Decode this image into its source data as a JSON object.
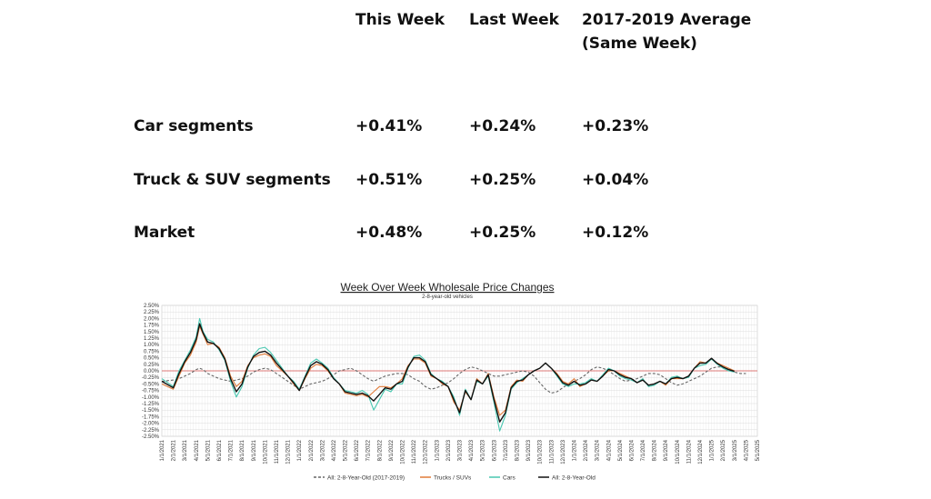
{
  "table": {
    "headers": [
      "This Week",
      "Last Week",
      "2017-2019 Average",
      "(Same Week)"
    ],
    "rows": [
      {
        "label": "Car segments",
        "this_week": "+0.41%",
        "last_week": "+0.24%",
        "avg": "+0.23%"
      },
      {
        "label": "Truck & SUV segments",
        "this_week": "+0.51%",
        "last_week": "+0.25%",
        "avg": "+0.04%"
      },
      {
        "label": "Market",
        "this_week": "+0.48%",
        "last_week": "+0.25%",
        "avg": "+0.12%"
      }
    ]
  },
  "chart_data": {
    "type": "line",
    "title": "Week Over Week Wholesale Price Changes",
    "subtitle": "2-8-year-old vehicles",
    "ylim": [
      -2.5,
      2.5
    ],
    "y_ticks": [
      "2.50%",
      "2.25%",
      "2.00%",
      "1.75%",
      "1.50%",
      "1.25%",
      "1.00%",
      "0.75%",
      "0.50%",
      "0.25%",
      "0.00%",
      "-0.25%",
      "-0.50%",
      "-0.75%",
      "-1.00%",
      "-1.25%",
      "-1.50%",
      "-1.75%",
      "-2.00%",
      "-2.25%",
      "-2.50%"
    ],
    "x_ticks": [
      "1/1/2021",
      "2/1/2021",
      "3/1/2021",
      "4/1/2021",
      "5/1/2021",
      "6/1/2021",
      "7/1/2021",
      "8/1/2021",
      "9/1/2021",
      "10/1/2021",
      "11/1/2021",
      "12/1/2021",
      "1/1/2022",
      "2/1/2022",
      "3/1/2022",
      "4/1/2022",
      "5/1/2022",
      "6/1/2022",
      "7/1/2022",
      "8/1/2022",
      "9/1/2022",
      "10/1/2022",
      "11/1/2022",
      "12/1/2022",
      "1/1/2023",
      "2/1/2023",
      "3/1/2023",
      "4/1/2023",
      "5/1/2023",
      "6/1/2023",
      "7/1/2023",
      "8/1/2023",
      "9/1/2023",
      "10/1/2023",
      "11/1/2023",
      "12/1/2023",
      "1/1/2024",
      "2/1/2024",
      "3/1/2024",
      "4/1/2024",
      "5/1/2024",
      "6/1/2024",
      "7/1/2024",
      "8/1/2024",
      "9/1/2024",
      "10/1/2024",
      "11/1/2024",
      "12/1/2024",
      "1/1/2025",
      "2/1/2025",
      "3/1/2025",
      "4/1/2025",
      "5/1/2025"
    ],
    "x_months": [
      0,
      1,
      1.5,
      2,
      2.5,
      3,
      3.3,
      3.6,
      4,
      4.5,
      5,
      5.5,
      6,
      6.5,
      7,
      7.5,
      8,
      8.5,
      9,
      9.5,
      10,
      10.5,
      11,
      11.5,
      12,
      12.5,
      13,
      13.5,
      14,
      14.5,
      15,
      15.5,
      16,
      16.5,
      17,
      17.5,
      18,
      18.5,
      19,
      19.5,
      20,
      20.5,
      21,
      21.5,
      22,
      22.5,
      23,
      23.5,
      24,
      24.5,
      25,
      25.5,
      26,
      26.5,
      27,
      27.5,
      28,
      28.5,
      29,
      29.5,
      30,
      30.5,
      31,
      31.5,
      32,
      32.5,
      33,
      33.5,
      34,
      34.5,
      35,
      35.5,
      36,
      36.5,
      37,
      37.5,
      38,
      38.5,
      39,
      39.5,
      40,
      40.5,
      41,
      41.5,
      42,
      42.5,
      43,
      43.5,
      44,
      44.5,
      45,
      45.5,
      46,
      46.5,
      47,
      47.5,
      48,
      48.5,
      49,
      49.5,
      50,
      50.5,
      51
    ],
    "series": [
      {
        "name": "All: 2-8-Year-Old (2017-2019)",
        "color": "#666666",
        "dash": true,
        "values": [
          -0.4,
          -0.35,
          -0.3,
          -0.2,
          -0.1,
          0.05,
          0.1,
          0.05,
          -0.1,
          -0.2,
          -0.3,
          -0.35,
          -0.4,
          -0.35,
          -0.3,
          -0.2,
          -0.05,
          0.05,
          0.1,
          0.05,
          -0.1,
          -0.25,
          -0.4,
          -0.55,
          -0.7,
          -0.6,
          -0.5,
          -0.45,
          -0.4,
          -0.3,
          -0.15,
          0.0,
          0.05,
          0.1,
          0.0,
          -0.15,
          -0.3,
          -0.4,
          -0.3,
          -0.2,
          -0.15,
          -0.1,
          -0.1,
          -0.15,
          -0.3,
          -0.4,
          -0.6,
          -0.7,
          -0.65,
          -0.55,
          -0.45,
          -0.3,
          -0.1,
          0.05,
          0.15,
          0.1,
          0.0,
          -0.1,
          -0.2,
          -0.2,
          -0.15,
          -0.1,
          -0.05,
          0.0,
          -0.05,
          -0.2,
          -0.45,
          -0.7,
          -0.85,
          -0.8,
          -0.65,
          -0.5,
          -0.4,
          -0.3,
          -0.15,
          0.05,
          0.15,
          0.1,
          0.0,
          -0.15,
          -0.3,
          -0.4,
          -0.35,
          -0.3,
          -0.2,
          -0.1,
          -0.1,
          -0.15,
          -0.3,
          -0.45,
          -0.55,
          -0.5,
          -0.4,
          -0.3,
          -0.2,
          -0.05,
          0.1,
          0.15,
          0.15,
          0.05,
          -0.05,
          -0.1,
          -0.1
        ]
      },
      {
        "name": "Trucks / SUVs",
        "color": "#e07b39",
        "dash": false,
        "values": [
          -0.5,
          -0.7,
          -0.2,
          0.3,
          0.6,
          1.1,
          1.7,
          1.4,
          1.0,
          1.05,
          0.9,
          0.5,
          -0.2,
          -0.6,
          -0.4,
          0.2,
          0.5,
          0.6,
          0.65,
          0.55,
          0.2,
          0.0,
          -0.2,
          -0.5,
          -0.75,
          -0.3,
          0.1,
          0.25,
          0.2,
          0.0,
          -0.3,
          -0.5,
          -0.85,
          -0.9,
          -0.95,
          -0.9,
          -1.0,
          -0.8,
          -0.6,
          -0.6,
          -0.65,
          -0.5,
          -0.3,
          0.2,
          0.45,
          0.45,
          0.3,
          -0.2,
          -0.3,
          -0.5,
          -0.6,
          -1.2,
          -1.5,
          -0.8,
          -1.1,
          -0.3,
          -0.5,
          -0.1,
          -1.0,
          -1.7,
          -1.5,
          -0.6,
          -0.35,
          -0.4,
          -0.15,
          0.0,
          0.1,
          0.3,
          0.1,
          -0.1,
          -0.4,
          -0.5,
          -0.3,
          -0.6,
          -0.5,
          -0.35,
          -0.4,
          -0.2,
          0.0,
          0.0,
          -0.1,
          -0.2,
          -0.3,
          -0.45,
          -0.35,
          -0.55,
          -0.5,
          -0.4,
          -0.55,
          -0.3,
          -0.3,
          -0.3,
          -0.2,
          0.1,
          0.35,
          0.3,
          0.45,
          0.3,
          0.2,
          0.1,
          0.0
        ]
      },
      {
        "name": "Cars",
        "color": "#48c7b0",
        "dash": false,
        "values": [
          -0.3,
          -0.6,
          0.0,
          0.4,
          0.8,
          1.3,
          2.0,
          1.5,
          1.2,
          1.1,
          0.8,
          0.4,
          -0.4,
          -1.0,
          -0.6,
          0.1,
          0.6,
          0.85,
          0.9,
          0.7,
          0.4,
          0.1,
          -0.2,
          -0.4,
          -0.7,
          -0.2,
          0.3,
          0.45,
          0.3,
          0.1,
          -0.25,
          -0.5,
          -0.75,
          -0.8,
          -0.85,
          -0.75,
          -0.9,
          -1.5,
          -1.1,
          -0.7,
          -0.8,
          -0.5,
          -0.5,
          0.1,
          0.55,
          0.6,
          0.4,
          -0.1,
          -0.3,
          -0.4,
          -0.6,
          -1.0,
          -1.7,
          -0.7,
          -1.1,
          -0.4,
          -0.5,
          -0.2,
          -1.2,
          -2.3,
          -1.7,
          -0.7,
          -0.45,
          -0.3,
          -0.15,
          0.0,
          0.1,
          0.3,
          0.1,
          -0.2,
          -0.5,
          -0.6,
          -0.5,
          -0.5,
          -0.45,
          -0.3,
          -0.4,
          -0.15,
          0.1,
          0.0,
          -0.2,
          -0.3,
          -0.35,
          -0.45,
          -0.3,
          -0.6,
          -0.55,
          -0.4,
          -0.5,
          -0.25,
          -0.2,
          -0.3,
          -0.25,
          0.1,
          0.2,
          0.25,
          0.45,
          0.25,
          0.1,
          0.0,
          -0.05
        ]
      },
      {
        "name": "All: 2-8-Year-Old",
        "color": "#111111",
        "dash": false,
        "values": [
          -0.4,
          -0.65,
          -0.1,
          0.35,
          0.7,
          1.2,
          1.8,
          1.45,
          1.1,
          1.05,
          0.85,
          0.45,
          -0.3,
          -0.8,
          -0.5,
          0.15,
          0.55,
          0.7,
          0.75,
          0.6,
          0.3,
          0.05,
          -0.2,
          -0.45,
          -0.75,
          -0.25,
          0.2,
          0.35,
          0.25,
          0.05,
          -0.3,
          -0.5,
          -0.8,
          -0.85,
          -0.9,
          -0.85,
          -0.95,
          -1.15,
          -0.9,
          -0.65,
          -0.7,
          -0.5,
          -0.4,
          0.15,
          0.5,
          0.5,
          0.35,
          -0.15,
          -0.3,
          -0.45,
          -0.6,
          -1.1,
          -1.6,
          -0.75,
          -1.1,
          -0.35,
          -0.5,
          -0.15,
          -1.1,
          -1.95,
          -1.6,
          -0.65,
          -0.4,
          -0.35,
          -0.15,
          0.0,
          0.1,
          0.3,
          0.1,
          -0.15,
          -0.45,
          -0.55,
          -0.4,
          -0.55,
          -0.5,
          -0.35,
          -0.4,
          -0.2,
          0.05,
          0.0,
          -0.15,
          -0.25,
          -0.3,
          -0.45,
          -0.35,
          -0.55,
          -0.5,
          -0.4,
          -0.5,
          -0.3,
          -0.25,
          -0.3,
          -0.2,
          0.1,
          0.3,
          0.3,
          0.48,
          0.28,
          0.15,
          0.05,
          -0.02
        ]
      }
    ],
    "legend": "bottom",
    "grid": true
  }
}
